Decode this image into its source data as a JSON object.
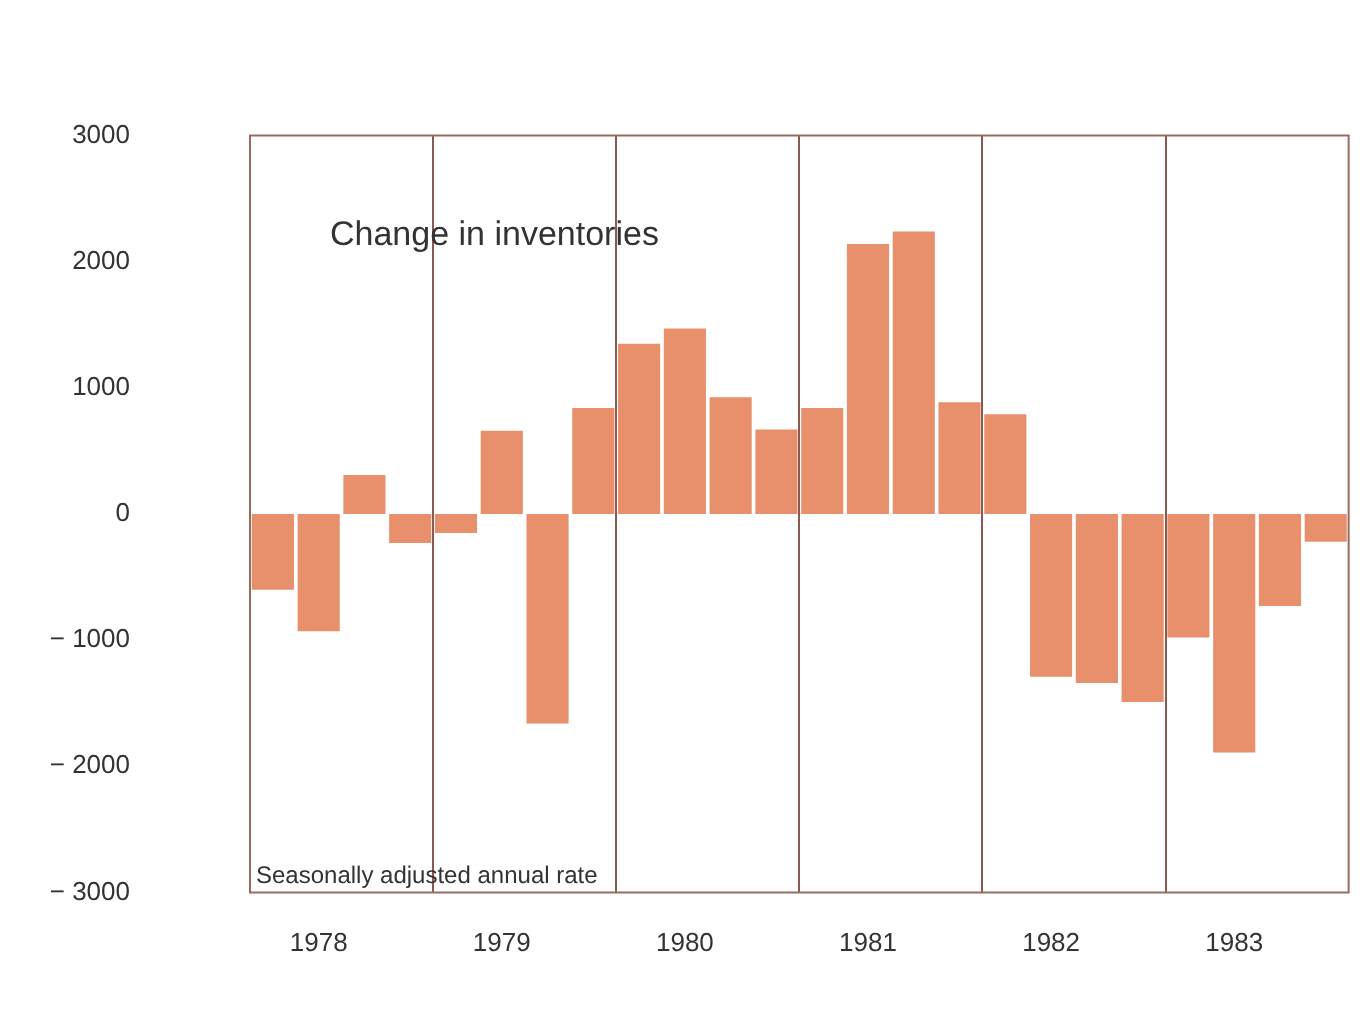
{
  "chart_data": {
    "type": "bar",
    "title": "Change in inventories",
    "categories": [
      null,
      "1978",
      null,
      null,
      null,
      "1979",
      null,
      null,
      null,
      "1980",
      null,
      null,
      null,
      "1981",
      null,
      null,
      null,
      "1982",
      null,
      null,
      null,
      "1983",
      null,
      null
    ],
    "values": [
      -600,
      -930,
      310,
      -230,
      -150,
      660,
      -1660,
      840,
      1350,
      1470,
      925,
      670,
      840,
      2140,
      2240,
      885,
      790,
      -1290,
      -1340,
      -1490,
      -980,
      -1890,
      -730,
      -220
    ],
    "color": "#e8906c",
    "ylim": [
      -3000,
      3000
    ],
    "yticks": [
      {
        "value": -3000,
        "label": "− 3000"
      },
      {
        "value": -2000,
        "label": "− 2000"
      },
      {
        "value": -1000,
        "label": "− 1000"
      },
      0,
      1000,
      2000,
      3000
    ],
    "grid": "x",
    "legend": false,
    "annotations": [
      "Seasonally adjusted annual rate"
    ]
  }
}
